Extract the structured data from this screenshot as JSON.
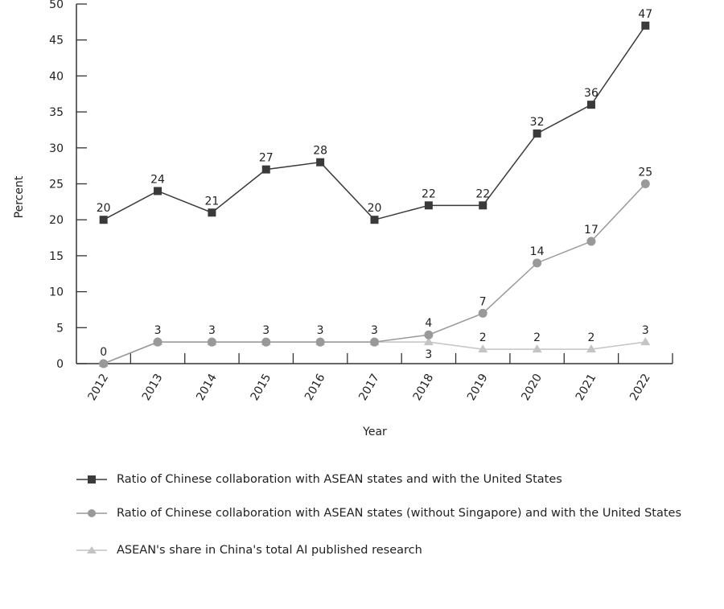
{
  "chart_data": {
    "type": "line",
    "title": "",
    "xlabel": "Year",
    "ylabel": "Percent",
    "ylim": [
      0,
      50
    ],
    "yticks": [
      0,
      5,
      10,
      15,
      20,
      25,
      30,
      35,
      40,
      45,
      50
    ],
    "categories": [
      "2012",
      "2013",
      "2014",
      "2015",
      "2016",
      "2017",
      "2018",
      "2019",
      "2020",
      "2021",
      "2022"
    ],
    "grid": false,
    "legend_position": "bottom",
    "series": [
      {
        "name": "Ratio of Chinese collaboration with ASEAN states and with the United States",
        "marker": "square",
        "color": "#3a3a3a",
        "values": [
          20,
          24,
          21,
          27,
          28,
          20,
          22,
          22,
          32,
          36,
          47
        ]
      },
      {
        "name": "Ratio of Chinese collaboration with ASEAN states (without Singapore) and with the United States",
        "marker": "circle",
        "color": "#999999",
        "values": [
          0,
          3,
          3,
          3,
          3,
          3,
          4,
          7,
          14,
          17,
          25
        ]
      },
      {
        "name": "ASEAN's share in China's total AI published research",
        "marker": "triangle",
        "color": "#c4c4c4",
        "values": [
          0,
          3,
          3,
          3,
          3,
          3,
          3,
          2,
          2,
          2,
          3
        ]
      }
    ]
  }
}
